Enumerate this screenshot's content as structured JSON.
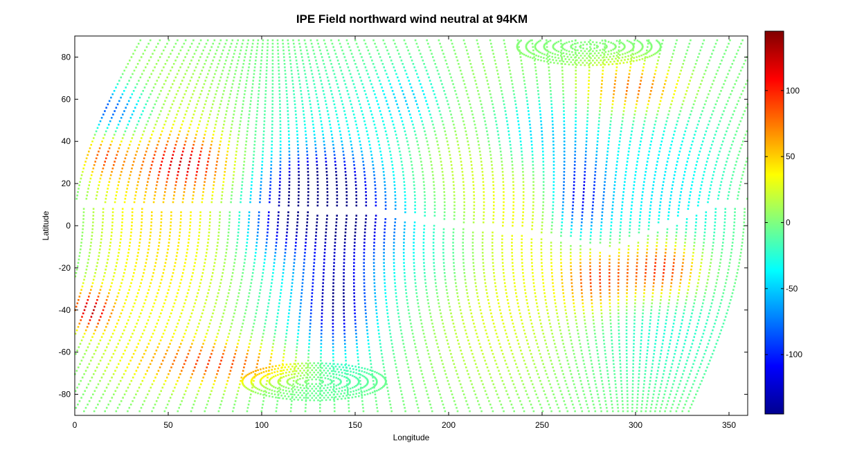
{
  "chart_data": {
    "type": "scatter",
    "title": "IPE Field northward wind neutral at 94KM",
    "xlabel": "Longitude",
    "ylabel": "Latitude",
    "xlim": [
      0,
      360
    ],
    "ylim": [
      -90,
      90
    ],
    "xticks": [
      "0",
      "50",
      "100",
      "150",
      "200",
      "250",
      "300",
      "350"
    ],
    "yticks": [
      "80",
      "60",
      "40",
      "20",
      "0",
      "-20",
      "-40",
      "-60",
      "-80"
    ],
    "colormap": "jet",
    "clim": [
      -145,
      145
    ],
    "colorbar_ticks": [
      "100",
      "50",
      "0",
      "-50",
      "-100"
    ],
    "grid": false,
    "legend": "none",
    "field_features": {
      "north_pole_focus": [
        275,
        85
      ],
      "south_pole_focus": [
        128,
        -74
      ],
      "magnetic_equator": [
        [
          0,
          10
        ],
        [
          60,
          9
        ],
        [
          120,
          8
        ],
        [
          160,
          7
        ],
        [
          200,
          1
        ],
        [
          240,
          -3
        ],
        [
          270,
          -8
        ],
        [
          285,
          -12
        ],
        [
          310,
          -2
        ],
        [
          340,
          10
        ],
        [
          360,
          11
        ]
      ]
    }
  }
}
